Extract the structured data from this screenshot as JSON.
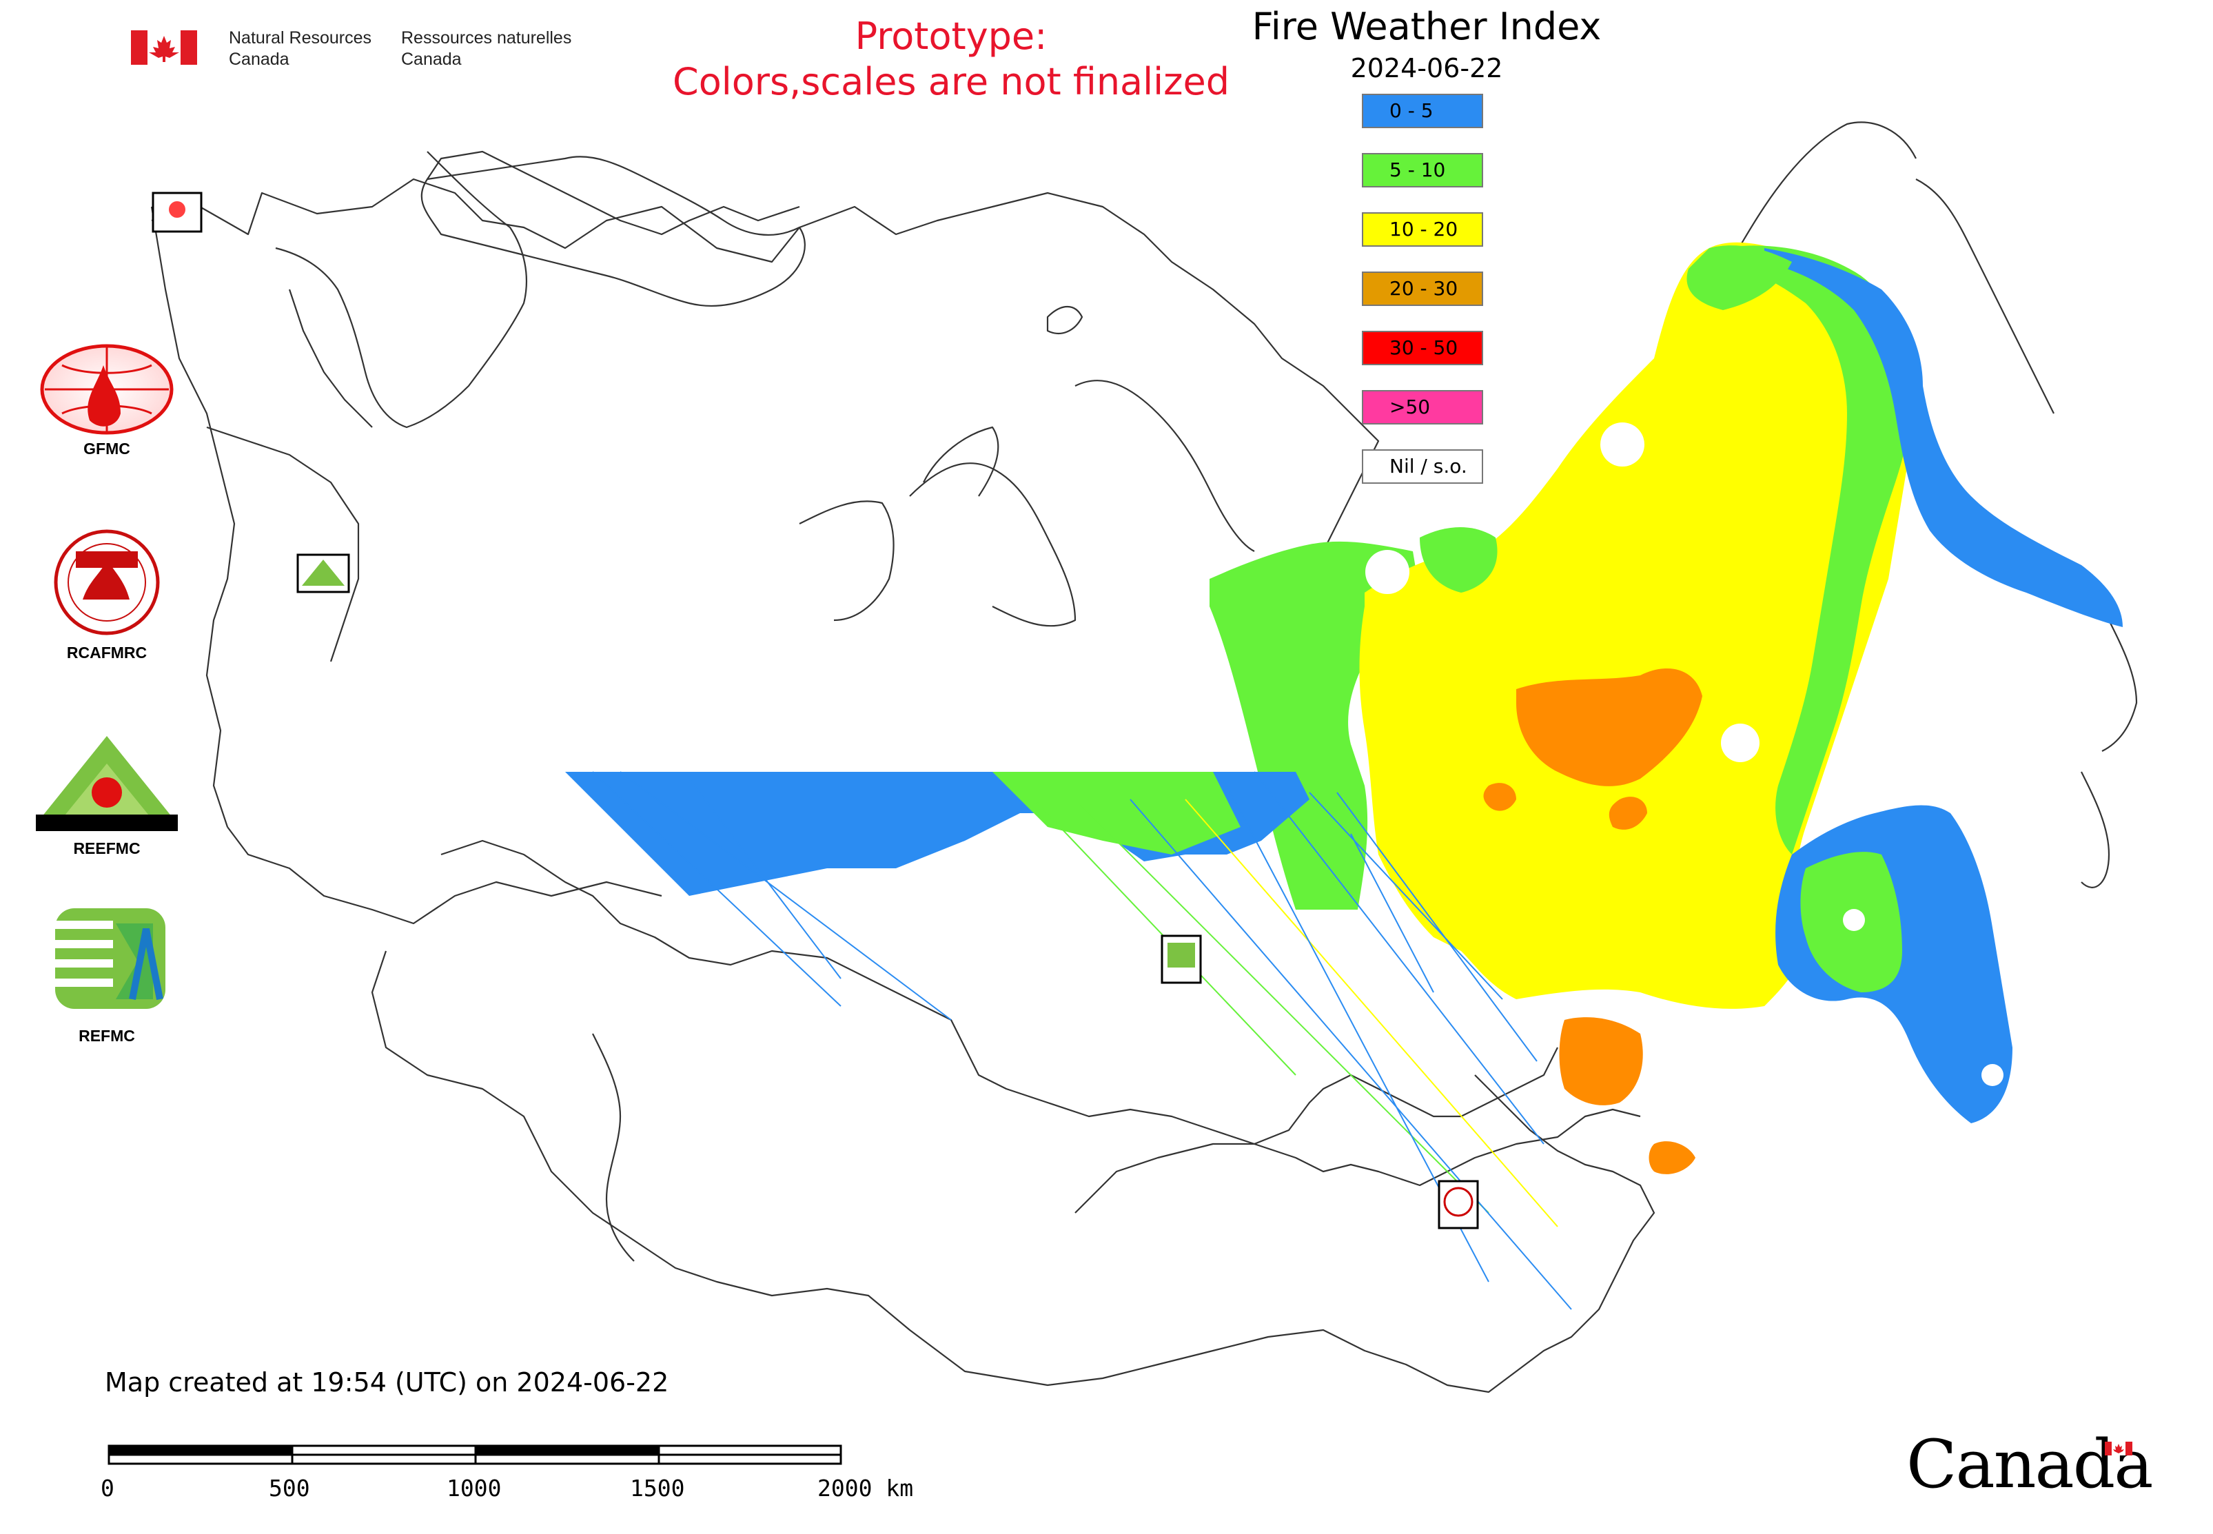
{
  "header": {
    "dept_en": [
      "Natural Resources",
      "Canada"
    ],
    "dept_fr": [
      "Ressources naturelles",
      "Canada"
    ],
    "prototype": [
      "Prototype:",
      "Colors,scales are not finalized"
    ],
    "title": "Fire Weather Index",
    "date": "2024-06-22"
  },
  "legend": [
    {
      "label": "0 - 5",
      "color": "#2b8cf2"
    },
    {
      "label": "5 - 10",
      "color": "#66f23a"
    },
    {
      "label": "10 - 20",
      "color": "#ffff00"
    },
    {
      "label": "20 - 30",
      "color": "#e39a00"
    },
    {
      "label": "30 - 50",
      "color": "#ff0000"
    },
    {
      "label": ">50",
      "color": "#ff3aa0"
    },
    {
      "label": "Nil / s.o.",
      "color": "#ffffff"
    }
  ],
  "logos": [
    {
      "name": "GFMC",
      "icon": "gfmc-globe-fire-icon"
    },
    {
      "name": "RCAFMRC",
      "icon": "rcafmrc-seal-icon"
    },
    {
      "name": "REEFMC",
      "icon": "reefmc-triangle-icon"
    },
    {
      "name": "REFMC",
      "icon": "refmc-sigma-icon"
    }
  ],
  "footer": {
    "created": "Map created at 19:54 (UTC) on 2024-06-22",
    "scale_ticks": [
      "0",
      "500",
      "1000",
      "1500",
      "2000 km"
    ],
    "wordmark": "Canada"
  }
}
